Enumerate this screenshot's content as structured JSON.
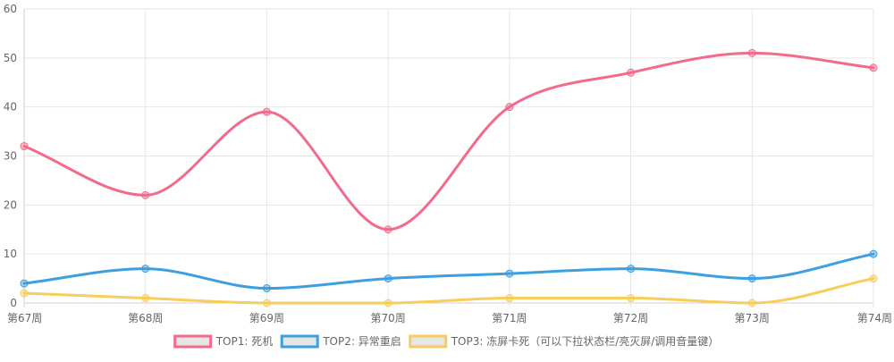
{
  "chart_data": {
    "type": "line",
    "categories": [
      "第67周",
      "第68周",
      "第69周",
      "第70周",
      "第71周",
      "第72周",
      "第73周",
      "第74周"
    ],
    "ylim": [
      0,
      60
    ],
    "yticks": [
      0,
      10,
      20,
      30,
      40,
      50,
      60
    ],
    "grid": true,
    "legend": "bottom",
    "smooth": true,
    "series": [
      {
        "name": "TOP1: 死机",
        "color": "#f26b8a",
        "values": [
          32,
          22,
          39,
          15,
          40,
          47,
          51,
          48
        ]
      },
      {
        "name": "TOP2: 异常重启",
        "color": "#3b9fe0",
        "values": [
          4,
          7,
          3,
          5,
          6,
          7,
          5,
          10
        ]
      },
      {
        "name": "TOP3: 冻屏卡死（可以下拉状态栏/亮灭屏/调用音量键）",
        "color": "#f7cd5c",
        "values": [
          2,
          1,
          0,
          0,
          1,
          1,
          0,
          5
        ]
      }
    ]
  }
}
